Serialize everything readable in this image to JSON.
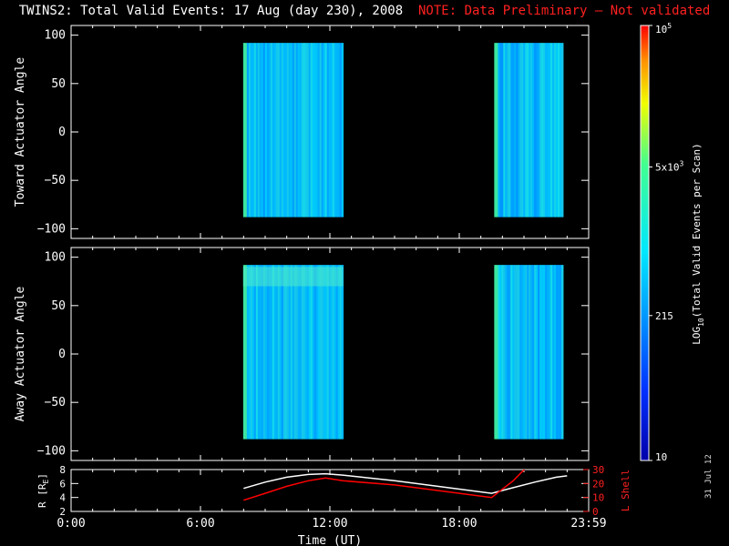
{
  "title": {
    "main": "TWINS2: Total Valid Events: 17 Aug (day 230), 2008",
    "note": "NOTE: Data Preliminary — Not validated"
  },
  "footer_date": "31 Jul 12",
  "chart_data": [
    {
      "type": "heatmap",
      "ylabel": "Toward Actuator Angle",
      "xlim": [
        0,
        24
      ],
      "ylim": [
        -110,
        110
      ],
      "y_ticks": [
        100,
        50,
        0,
        -50,
        -100
      ],
      "x_ticks": [
        0,
        6,
        12,
        18,
        24
      ],
      "data_blocks": [
        {
          "x_start": 7.98,
          "x_end": 12.62,
          "y_start": -88,
          "y_end": 92
        },
        {
          "x_start": 19.62,
          "x_end": 22.82,
          "y_start": -88,
          "y_end": 92
        }
      ]
    },
    {
      "type": "heatmap",
      "ylabel": "Away Actuator Angle",
      "xlim": [
        0,
        24
      ],
      "ylim": [
        -110,
        110
      ],
      "y_ticks": [
        100,
        50,
        0,
        -50,
        -100
      ],
      "x_ticks": [
        0,
        6,
        12,
        18,
        24
      ],
      "data_blocks": [
        {
          "x_start": 7.98,
          "x_end": 12.62,
          "y_start": -88,
          "y_end": 92
        },
        {
          "x_start": 19.62,
          "x_end": 22.82,
          "y_start": -88,
          "y_end": 92
        }
      ]
    },
    {
      "type": "line",
      "ylabel": "R [R",
      "ylabel_sub": "E",
      "ylabel_end": "]",
      "y2label": "L Shell",
      "xlim": [
        0,
        24
      ],
      "ylim": [
        2,
        8
      ],
      "y2lim": [
        0,
        30
      ],
      "y_ticks": [
        2,
        4,
        6,
        8
      ],
      "y2_ticks": [
        0,
        10,
        20,
        30
      ],
      "x_ticks": [
        0,
        6,
        12,
        18,
        24
      ],
      "x_tick_labels": [
        "0:00",
        "6:00",
        "12:00",
        "18:00",
        "23:59"
      ],
      "xlabel": "Time (UT)",
      "series": [
        {
          "color": "#ffffff",
          "axis": "left",
          "x": [
            8.0,
            9.0,
            10.0,
            11.0,
            11.8,
            12.6,
            15.0,
            17.0,
            19.5,
            20.5,
            21.5,
            22.5,
            23.0
          ],
          "y": [
            5.3,
            6.2,
            6.9,
            7.3,
            7.4,
            7.2,
            6.4,
            5.6,
            4.6,
            5.4,
            6.2,
            6.9,
            7.1
          ]
        },
        {
          "color": "#ff0000",
          "axis": "right",
          "x": [
            8.0,
            9.0,
            10.0,
            11.0,
            11.8,
            12.6,
            15.0,
            17.0,
            19.5,
            20.5,
            21.2
          ],
          "y": [
            8.0,
            13.0,
            18.0,
            22.0,
            24.0,
            22.0,
            19.0,
            15.0,
            10.0,
            22.0,
            33.0
          ]
        }
      ]
    }
  ],
  "colorbar": {
    "label_main": "LOG",
    "label_sub": "10",
    "label_rest": "(Total Valid Events per Scan)",
    "ticks": [
      {
        "value": 10,
        "label": "10"
      },
      {
        "value": 215,
        "label": "215"
      },
      {
        "value": 5000,
        "label": "5x10",
        "sup": "3"
      },
      {
        "value": 100000,
        "label": "10",
        "sup": "5"
      }
    ],
    "range": [
      10,
      100000
    ],
    "scale": "log"
  },
  "colors": {
    "low": "#0000aa",
    "mid": "#00e0ff",
    "high": "#ff0000",
    "r_line": "#ffffff",
    "lshell_line": "#ff0000"
  }
}
